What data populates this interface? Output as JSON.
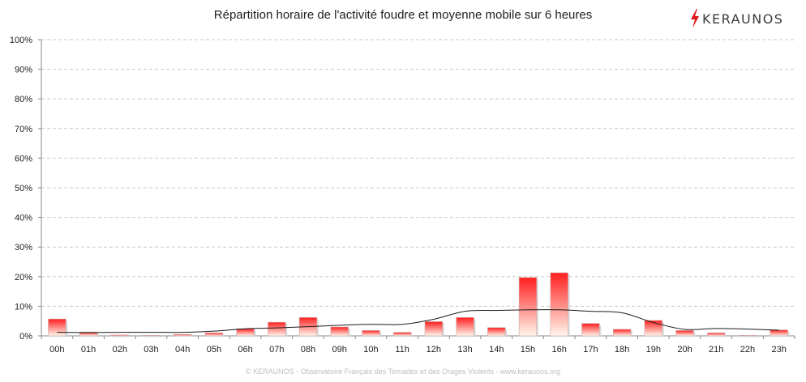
{
  "header": {
    "title": "Répartition horaire de l'activité foudre et moyenne mobile sur 6 heures",
    "logo_text": "KERAUNOS"
  },
  "footer": {
    "text": "© KERAUNOS - Observatoire Français des Tornades et des Orages Violents - www.keraunos.org"
  },
  "colors": {
    "bar_top": "#ff1f1f",
    "bar_bottom": "#fff6ec",
    "bar_edge": "#c9a9a9",
    "grid": "#c8c8c8",
    "line": "#1a1a1a",
    "logo_bolt": "#e01818"
  },
  "chart_data": {
    "type": "bar",
    "title": "Répartition horaire de l'activité foudre et moyenne mobile sur 6 heures",
    "categories": [
      "00h",
      "01h",
      "02h",
      "03h",
      "04h",
      "05h",
      "06h",
      "07h",
      "08h",
      "09h",
      "10h",
      "11h",
      "12h",
      "13h",
      "14h",
      "15h",
      "16h",
      "17h",
      "18h",
      "19h",
      "20h",
      "21h",
      "22h",
      "23h"
    ],
    "series": [
      {
        "type": "bar",
        "values": [
          5.7,
          1.3,
          0.3,
          0.2,
          0.5,
          1.0,
          2.4,
          4.6,
          6.2,
          3.0,
          1.8,
          1.2,
          4.8,
          6.2,
          2.8,
          19.7,
          21.3,
          4.2,
          2.2,
          5.2,
          1.8,
          1.0,
          0.2,
          2.0
        ]
      },
      {
        "type": "line",
        "values": [
          1.2,
          1.1,
          1.2,
          1.2,
          1.2,
          1.6,
          2.4,
          2.7,
          3.1,
          3.6,
          3.9,
          3.9,
          5.6,
          8.3,
          8.6,
          8.8,
          8.8,
          8.3,
          7.8,
          4.5,
          2.2,
          2.5,
          2.3,
          1.9
        ]
      }
    ],
    "ylim": [
      0,
      100
    ],
    "yticks": [
      "0%",
      "10%",
      "20%",
      "30%",
      "40%",
      "50%",
      "60%",
      "70%",
      "80%",
      "90%",
      "100%"
    ],
    "grid": true,
    "legend": "none"
  }
}
